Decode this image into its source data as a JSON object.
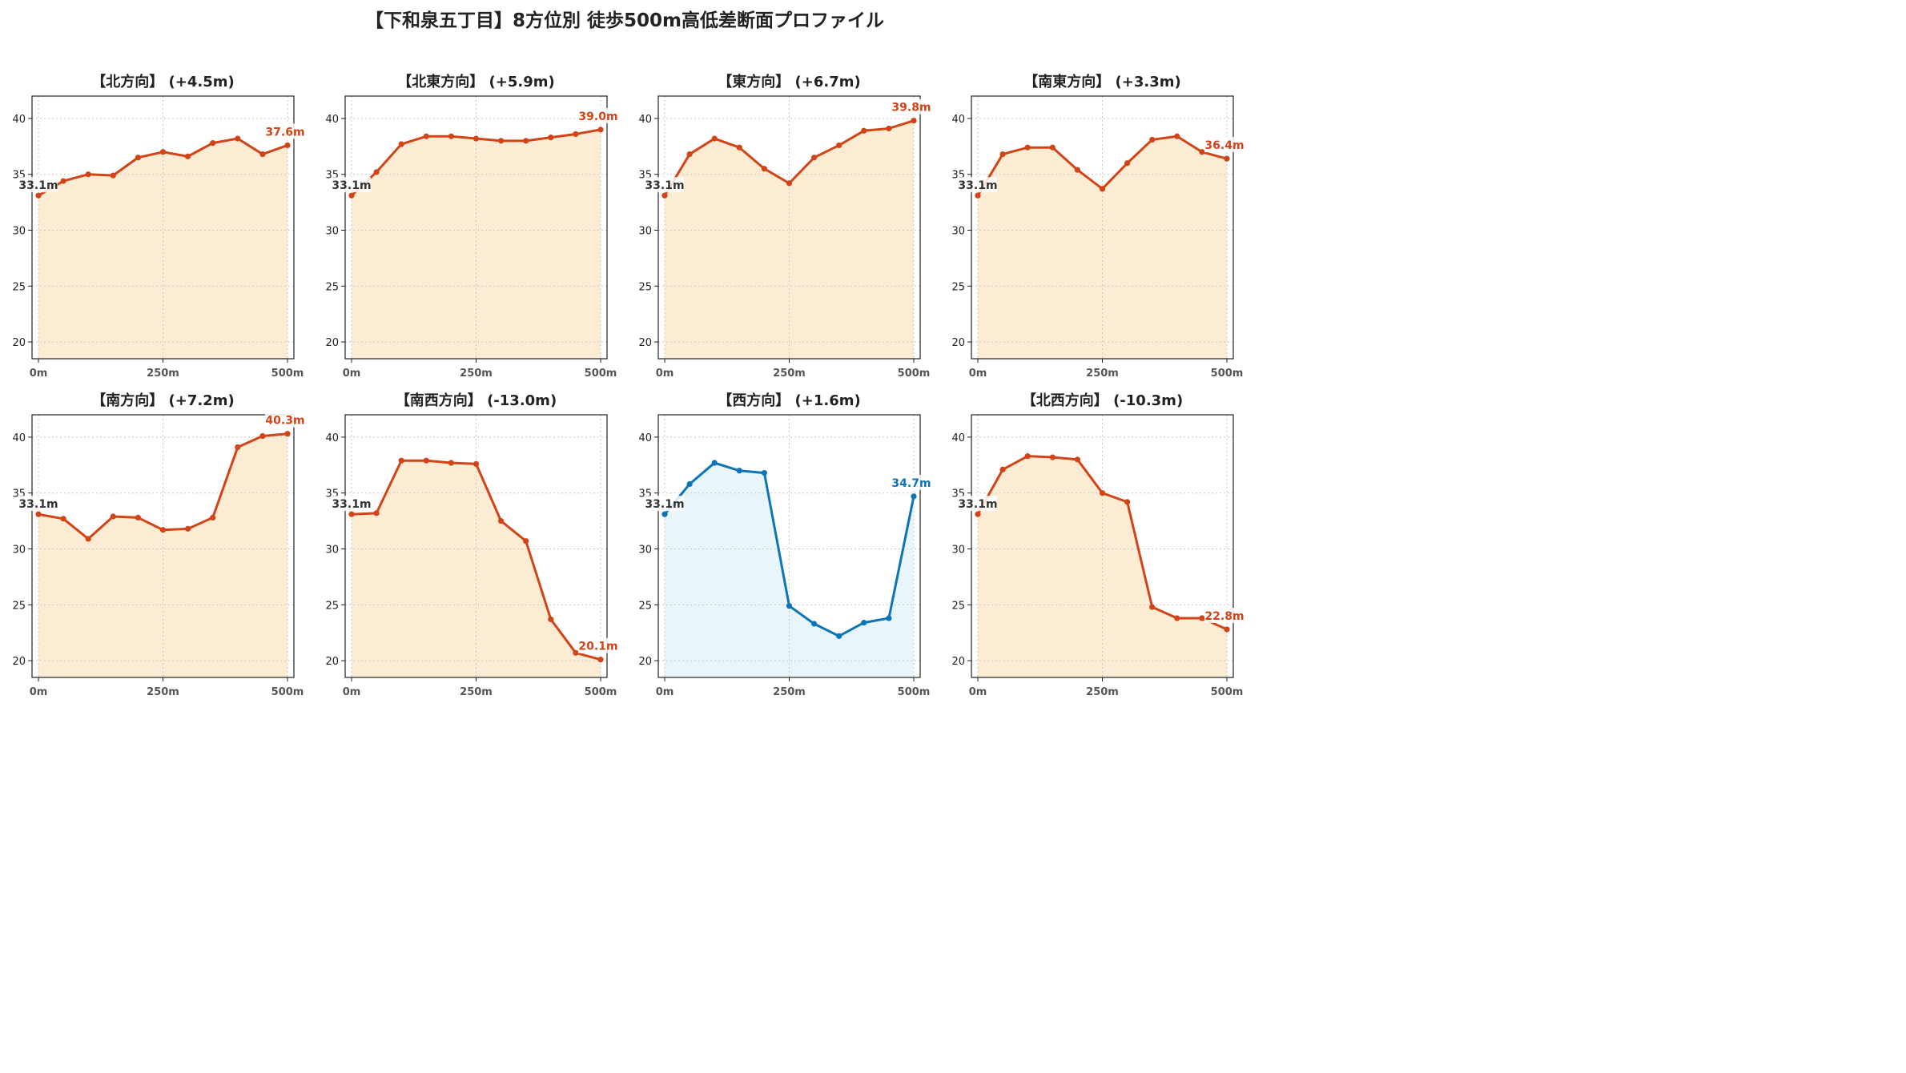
{
  "title": "【下和泉五丁目】8方位別 徒歩500m高低差断面プロファイル",
  "colors": {
    "up_line": "#d24418",
    "up_fill": "#fdecd4",
    "down_line": "#0d74b8",
    "down_fill": "#e8f5fb",
    "start_label": "#333333"
  },
  "chart_data": [
    {
      "type": "area",
      "title": "【北方向】 (+4.5m)",
      "x": [
        0,
        50,
        100,
        150,
        200,
        250,
        300,
        350,
        400,
        450,
        500
      ],
      "values": [
        33.1,
        34.4,
        35.0,
        34.9,
        36.5,
        37.0,
        36.6,
        37.8,
        38.2,
        36.8,
        37.6
      ],
      "start_label": "33.1m",
      "end_label": "37.6m",
      "color_scheme": "up",
      "ylim": [
        18.5,
        42
      ],
      "yticks": [
        "20",
        "25",
        "30",
        "35",
        "40"
      ],
      "xticks": [
        "0m",
        "250m",
        "500m"
      ],
      "grid": true
    },
    {
      "type": "area",
      "title": "【北東方向】 (+5.9m)",
      "x": [
        0,
        50,
        100,
        150,
        200,
        250,
        300,
        350,
        400,
        450,
        500
      ],
      "values": [
        33.1,
        35.2,
        37.7,
        38.4,
        38.4,
        38.2,
        38.0,
        38.0,
        38.3,
        38.6,
        39.0
      ],
      "start_label": "33.1m",
      "end_label": "39.0m",
      "color_scheme": "up",
      "ylim": [
        18.5,
        42
      ],
      "yticks": [
        "20",
        "25",
        "30",
        "35",
        "40"
      ],
      "xticks": [
        "0m",
        "250m",
        "500m"
      ],
      "grid": true
    },
    {
      "type": "area",
      "title": "【東方向】 (+6.7m)",
      "x": [
        0,
        50,
        100,
        150,
        200,
        250,
        300,
        350,
        400,
        450,
        500
      ],
      "values": [
        33.1,
        36.8,
        38.2,
        37.4,
        35.5,
        34.2,
        36.5,
        37.6,
        38.9,
        39.1,
        39.8
      ],
      "start_label": "33.1m",
      "end_label": "39.8m",
      "color_scheme": "up",
      "ylim": [
        18.5,
        42
      ],
      "yticks": [
        "20",
        "25",
        "30",
        "35",
        "40"
      ],
      "xticks": [
        "0m",
        "250m",
        "500m"
      ],
      "grid": true
    },
    {
      "type": "area",
      "title": "【南東方向】 (+3.3m)",
      "x": [
        0,
        50,
        100,
        150,
        200,
        250,
        300,
        350,
        400,
        450,
        500
      ],
      "values": [
        33.1,
        36.8,
        37.4,
        37.4,
        35.4,
        33.7,
        36.0,
        38.1,
        38.4,
        37.0,
        36.4
      ],
      "start_label": "33.1m",
      "end_label": "36.4m",
      "color_scheme": "up",
      "ylim": [
        18.5,
        42
      ],
      "yticks": [
        "20",
        "25",
        "30",
        "35",
        "40"
      ],
      "xticks": [
        "0m",
        "250m",
        "500m"
      ],
      "grid": true
    },
    {
      "type": "area",
      "title": "【南方向】 (+7.2m)",
      "x": [
        0,
        50,
        100,
        150,
        200,
        250,
        300,
        350,
        400,
        450,
        500
      ],
      "values": [
        33.1,
        32.7,
        30.9,
        32.9,
        32.8,
        31.7,
        31.8,
        32.8,
        39.1,
        40.1,
        40.3
      ],
      "start_label": "33.1m",
      "end_label": "40.3m",
      "color_scheme": "up",
      "ylim": [
        18.5,
        42
      ],
      "yticks": [
        "20",
        "25",
        "30",
        "35",
        "40"
      ],
      "xticks": [
        "0m",
        "250m",
        "500m"
      ],
      "grid": true
    },
    {
      "type": "area",
      "title": "【南西方向】 (-13.0m)",
      "x": [
        0,
        50,
        100,
        150,
        200,
        250,
        300,
        350,
        400,
        450,
        500
      ],
      "values": [
        33.1,
        33.2,
        37.9,
        37.9,
        37.7,
        37.6,
        32.5,
        30.7,
        23.7,
        20.7,
        20.1
      ],
      "start_label": "33.1m",
      "end_label": "20.1m",
      "color_scheme": "up",
      "ylim": [
        18.5,
        42
      ],
      "yticks": [
        "20",
        "25",
        "30",
        "35",
        "40"
      ],
      "xticks": [
        "0m",
        "250m",
        "500m"
      ],
      "grid": true
    },
    {
      "type": "area",
      "title": "【西方向】 (+1.6m)",
      "x": [
        0,
        50,
        100,
        150,
        200,
        250,
        300,
        350,
        400,
        450,
        500
      ],
      "values": [
        33.1,
        35.8,
        37.7,
        37.0,
        36.8,
        24.9,
        23.3,
        22.2,
        23.4,
        23.8,
        34.7
      ],
      "start_label": "33.1m",
      "end_label": "34.7m",
      "color_scheme": "down",
      "ylim": [
        18.5,
        42
      ],
      "yticks": [
        "20",
        "25",
        "30",
        "35",
        "40"
      ],
      "xticks": [
        "0m",
        "250m",
        "500m"
      ],
      "grid": true
    },
    {
      "type": "area",
      "title": "【北西方向】 (-10.3m)",
      "x": [
        0,
        50,
        100,
        150,
        200,
        250,
        300,
        350,
        400,
        450,
        500
      ],
      "values": [
        33.1,
        37.1,
        38.3,
        38.2,
        38.0,
        35.0,
        34.2,
        24.8,
        23.8,
        23.8,
        22.8
      ],
      "start_label": "33.1m",
      "end_label": "22.8m",
      "color_scheme": "up",
      "ylim": [
        18.5,
        42
      ],
      "yticks": [
        "20",
        "25",
        "30",
        "35",
        "40"
      ],
      "xticks": [
        "0m",
        "250m",
        "500m"
      ],
      "grid": true
    }
  ]
}
